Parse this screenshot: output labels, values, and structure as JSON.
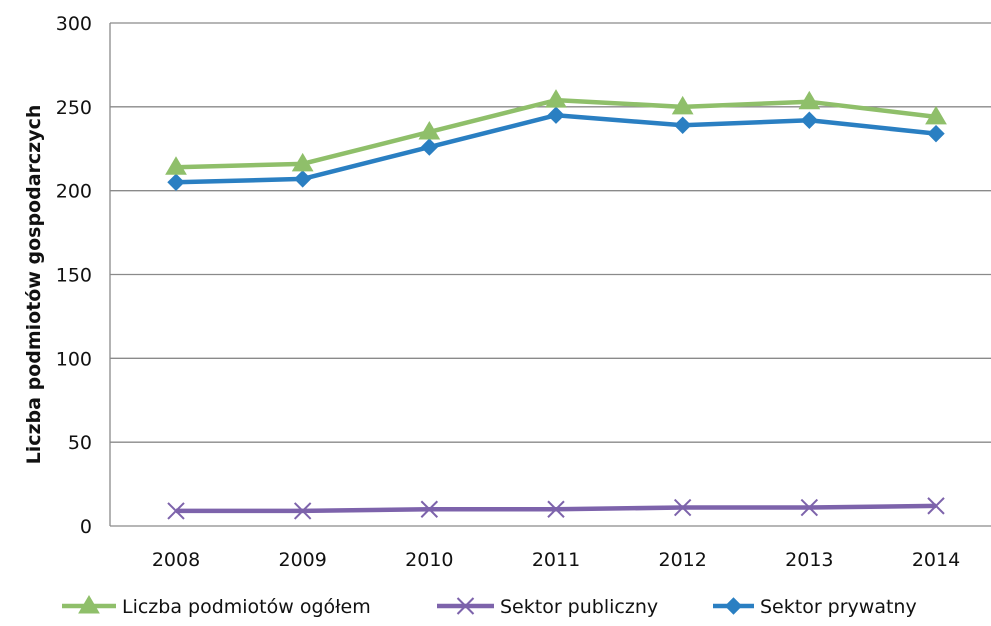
{
  "chart_data": {
    "type": "line",
    "title": "",
    "xlabel": "",
    "ylabel": "Liczba podmiotów gospodarczych",
    "ylim": [
      0,
      300
    ],
    "yticks": [
      0,
      50,
      100,
      150,
      200,
      250,
      300
    ],
    "grid": true,
    "legend_position": "bottom",
    "categories": [
      "2008",
      "2009",
      "2010",
      "2011",
      "2012",
      "2013",
      "2014"
    ],
    "series": [
      {
        "name": "Liczba podmiotów ogółem",
        "marker": "triangle",
        "color": "#8fbf6a",
        "values": [
          214,
          216,
          235,
          254,
          250,
          253,
          244
        ]
      },
      {
        "name": "Sektor publiczny",
        "marker": "x",
        "color": "#7d63ab",
        "values": [
          9,
          9,
          10,
          10,
          11,
          11,
          12
        ]
      },
      {
        "name": "Sektor prywatny",
        "marker": "diamond",
        "color": "#2a7fc2",
        "values": [
          205,
          207,
          226,
          245,
          239,
          242,
          234
        ]
      }
    ]
  }
}
